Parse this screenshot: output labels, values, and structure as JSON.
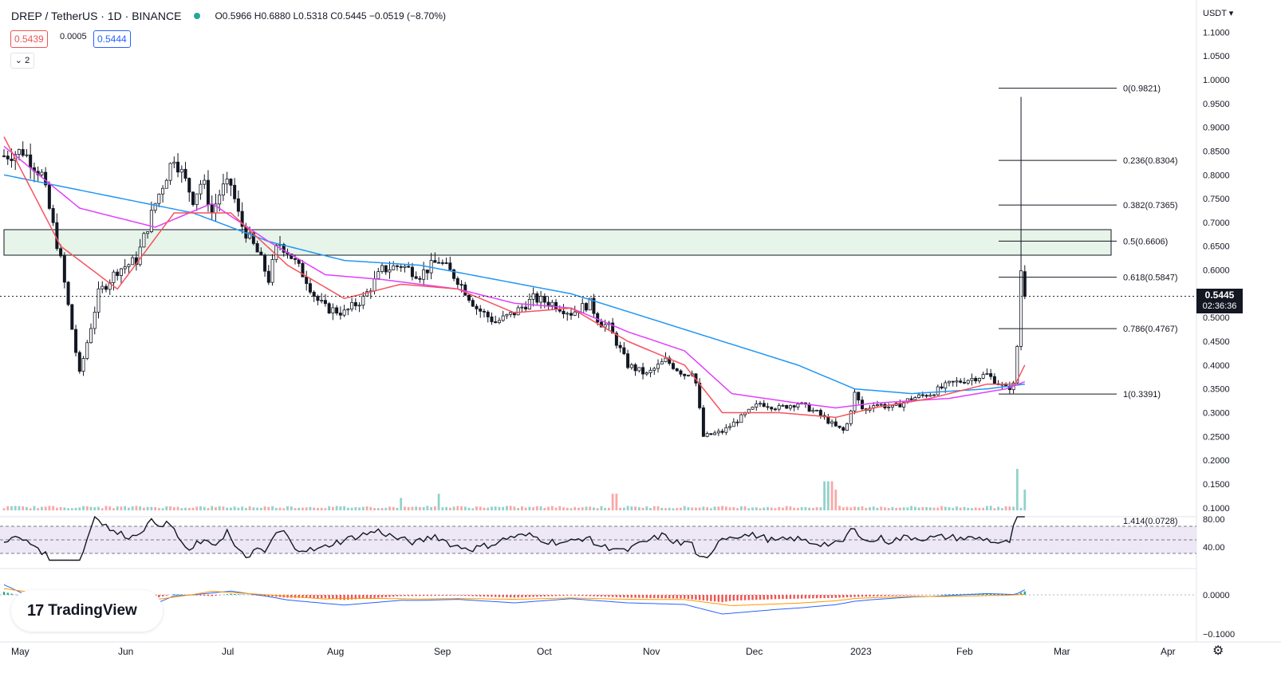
{
  "header": {
    "symbol": "DREP / TetherUS · 1D · BINANCE",
    "ohlc": "O0.5966 H0.6880 L0.5318 C0.5445 −0.0519 (−8.70%)",
    "bid": "0.5439",
    "spread": "0.0005",
    "ask": "0.5444",
    "collapse": "⌄ 2"
  },
  "axis": {
    "currency": "USDT ▾",
    "price_ticks": [
      "1.1000",
      "1.0500",
      "1.0000",
      "0.9500",
      "0.9000",
      "0.8500",
      "0.8000",
      "0.7500",
      "0.7000",
      "0.6500",
      "0.6000",
      "0.5500",
      "0.5000",
      "0.4500",
      "0.4000",
      "0.3500",
      "0.3000",
      "0.2500",
      "0.2000",
      "0.1500",
      "0.1000"
    ],
    "rsi_ticks": [
      "80.00",
      "40.00"
    ],
    "macd_ticks": [
      "0.0000",
      "−0.1000"
    ],
    "months": [
      "May",
      "Jun",
      "Jul",
      "Aug",
      "Sep",
      "Oct",
      "Nov",
      "Dec",
      "2023",
      "Feb",
      "Mar",
      "Apr"
    ]
  },
  "last_price": {
    "value": "0.5445",
    "countdown": "02:36:36"
  },
  "fib_labels": [
    "0(0.9821)",
    "0.236(0.8304)",
    "0.382(0.7365)",
    "0.5(0.6606)",
    "0.618(0.5847)",
    "0.786(0.4767)",
    "1(0.3391)",
    "1.414(0.0728)"
  ],
  "logo": {
    "mark": "17",
    "text": "TradingView"
  },
  "colors": {
    "up": "#26a69a",
    "down": "#ef5350",
    "ma_fast": "#f7525f",
    "ma_mid": "#e040fb",
    "ma_slow": "#2196f3",
    "zone": "#e6f4ea"
  },
  "chart_data": {
    "type": "candlestick",
    "title": "DREP / TetherUS · 1D · BINANCE",
    "ylim": [
      0.07,
      1.12
    ],
    "price_line": 0.5445,
    "resistance_zone": [
      0.63,
      0.685
    ],
    "fibonacci": [
      {
        "level": "0",
        "price": 0.9821
      },
      {
        "level": "0.236",
        "price": 0.8304
      },
      {
        "level": "0.382",
        "price": 0.7365
      },
      {
        "level": "0.5",
        "price": 0.6606
      },
      {
        "level": "0.618",
        "price": 0.5847
      },
      {
        "level": "0.786",
        "price": 0.4767
      },
      {
        "level": "1",
        "price": 0.3391
      },
      {
        "level": "1.414",
        "price": 0.0728
      }
    ],
    "close_path": [
      [
        0,
        0.84
      ],
      [
        10,
        0.85
      ],
      [
        20,
        0.8
      ],
      [
        30,
        0.62
      ],
      [
        40,
        0.38
      ],
      [
        50,
        0.55
      ],
      [
        60,
        0.6
      ],
      [
        70,
        0.62
      ],
      [
        80,
        0.74
      ],
      [
        90,
        0.84
      ],
      [
        100,
        0.75
      ],
      [
        105,
        0.79
      ],
      [
        110,
        0.72
      ],
      [
        115,
        0.77
      ],
      [
        120,
        0.78
      ],
      [
        125,
        0.7
      ],
      [
        135,
        0.63
      ],
      [
        140,
        0.58
      ],
      [
        145,
        0.66
      ],
      [
        150,
        0.64
      ],
      [
        160,
        0.58
      ],
      [
        165,
        0.54
      ],
      [
        170,
        0.52
      ],
      [
        180,
        0.51
      ],
      [
        190,
        0.54
      ],
      [
        200,
        0.6
      ],
      [
        210,
        0.61
      ],
      [
        220,
        0.59
      ],
      [
        230,
        0.62
      ],
      [
        240,
        0.58
      ],
      [
        250,
        0.52
      ],
      [
        260,
        0.49
      ],
      [
        270,
        0.51
      ],
      [
        280,
        0.54
      ],
      [
        290,
        0.53
      ],
      [
        300,
        0.51
      ],
      [
        310,
        0.53
      ],
      [
        315,
        0.49
      ],
      [
        320,
        0.48
      ],
      [
        330,
        0.4
      ],
      [
        340,
        0.38
      ],
      [
        350,
        0.41
      ],
      [
        360,
        0.38
      ],
      [
        365,
        0.39
      ],
      [
        370,
        0.25
      ],
      [
        380,
        0.26
      ],
      [
        390,
        0.29
      ],
      [
        400,
        0.32
      ],
      [
        410,
        0.31
      ],
      [
        420,
        0.32
      ],
      [
        430,
        0.3
      ],
      [
        440,
        0.27
      ],
      [
        445,
        0.26
      ],
      [
        450,
        0.34
      ],
      [
        455,
        0.3
      ],
      [
        460,
        0.32
      ],
      [
        470,
        0.31
      ],
      [
        480,
        0.33
      ],
      [
        490,
        0.34
      ],
      [
        500,
        0.36
      ],
      [
        510,
        0.37
      ],
      [
        520,
        0.38
      ],
      [
        530,
        0.35
      ],
      [
        535,
        0.36
      ],
      [
        538,
        0.6
      ],
      [
        540,
        0.5445
      ]
    ],
    "ma_fast": [
      [
        0,
        0.88
      ],
      [
        30,
        0.65
      ],
      [
        60,
        0.56
      ],
      [
        90,
        0.72
      ],
      [
        120,
        0.72
      ],
      [
        150,
        0.61
      ],
      [
        180,
        0.54
      ],
      [
        210,
        0.57
      ],
      [
        240,
        0.56
      ],
      [
        270,
        0.51
      ],
      [
        300,
        0.52
      ],
      [
        330,
        0.45
      ],
      [
        360,
        0.4
      ],
      [
        380,
        0.3
      ],
      [
        410,
        0.3
      ],
      [
        440,
        0.29
      ],
      [
        460,
        0.31
      ],
      [
        490,
        0.33
      ],
      [
        520,
        0.36
      ],
      [
        535,
        0.36
      ],
      [
        540,
        0.4
      ]
    ],
    "ma_mid": [
      [
        0,
        0.86
      ],
      [
        40,
        0.73
      ],
      [
        80,
        0.69
      ],
      [
        110,
        0.74
      ],
      [
        140,
        0.66
      ],
      [
        170,
        0.59
      ],
      [
        200,
        0.58
      ],
      [
        240,
        0.56
      ],
      [
        270,
        0.53
      ],
      [
        300,
        0.52
      ],
      [
        330,
        0.47
      ],
      [
        360,
        0.43
      ],
      [
        385,
        0.34
      ],
      [
        420,
        0.32
      ],
      [
        440,
        0.31
      ],
      [
        460,
        0.32
      ],
      [
        500,
        0.33
      ],
      [
        530,
        0.35
      ],
      [
        540,
        0.365
      ]
    ],
    "ma_slow": [
      [
        0,
        0.8
      ],
      [
        50,
        0.76
      ],
      [
        100,
        0.72
      ],
      [
        140,
        0.66
      ],
      [
        180,
        0.62
      ],
      [
        220,
        0.61
      ],
      [
        260,
        0.58
      ],
      [
        300,
        0.55
      ],
      [
        340,
        0.5
      ],
      [
        380,
        0.45
      ],
      [
        420,
        0.4
      ],
      [
        450,
        0.35
      ],
      [
        480,
        0.34
      ],
      [
        520,
        0.35
      ],
      [
        540,
        0.36
      ]
    ],
    "volume_spikes": [
      [
        210,
        0.3
      ],
      [
        230,
        0.4
      ],
      [
        323,
        0.4
      ],
      [
        435,
        0.7
      ],
      [
        438,
        0.7
      ],
      [
        440,
        0.5
      ],
      [
        536,
        1.0
      ],
      [
        540,
        0.5
      ]
    ],
    "rsi": {
      "overbought": 70,
      "oversold": 30,
      "ticks": [
        80,
        40
      ]
    },
    "macd": {
      "ticks": [
        0.0,
        -0.1
      ]
    }
  }
}
